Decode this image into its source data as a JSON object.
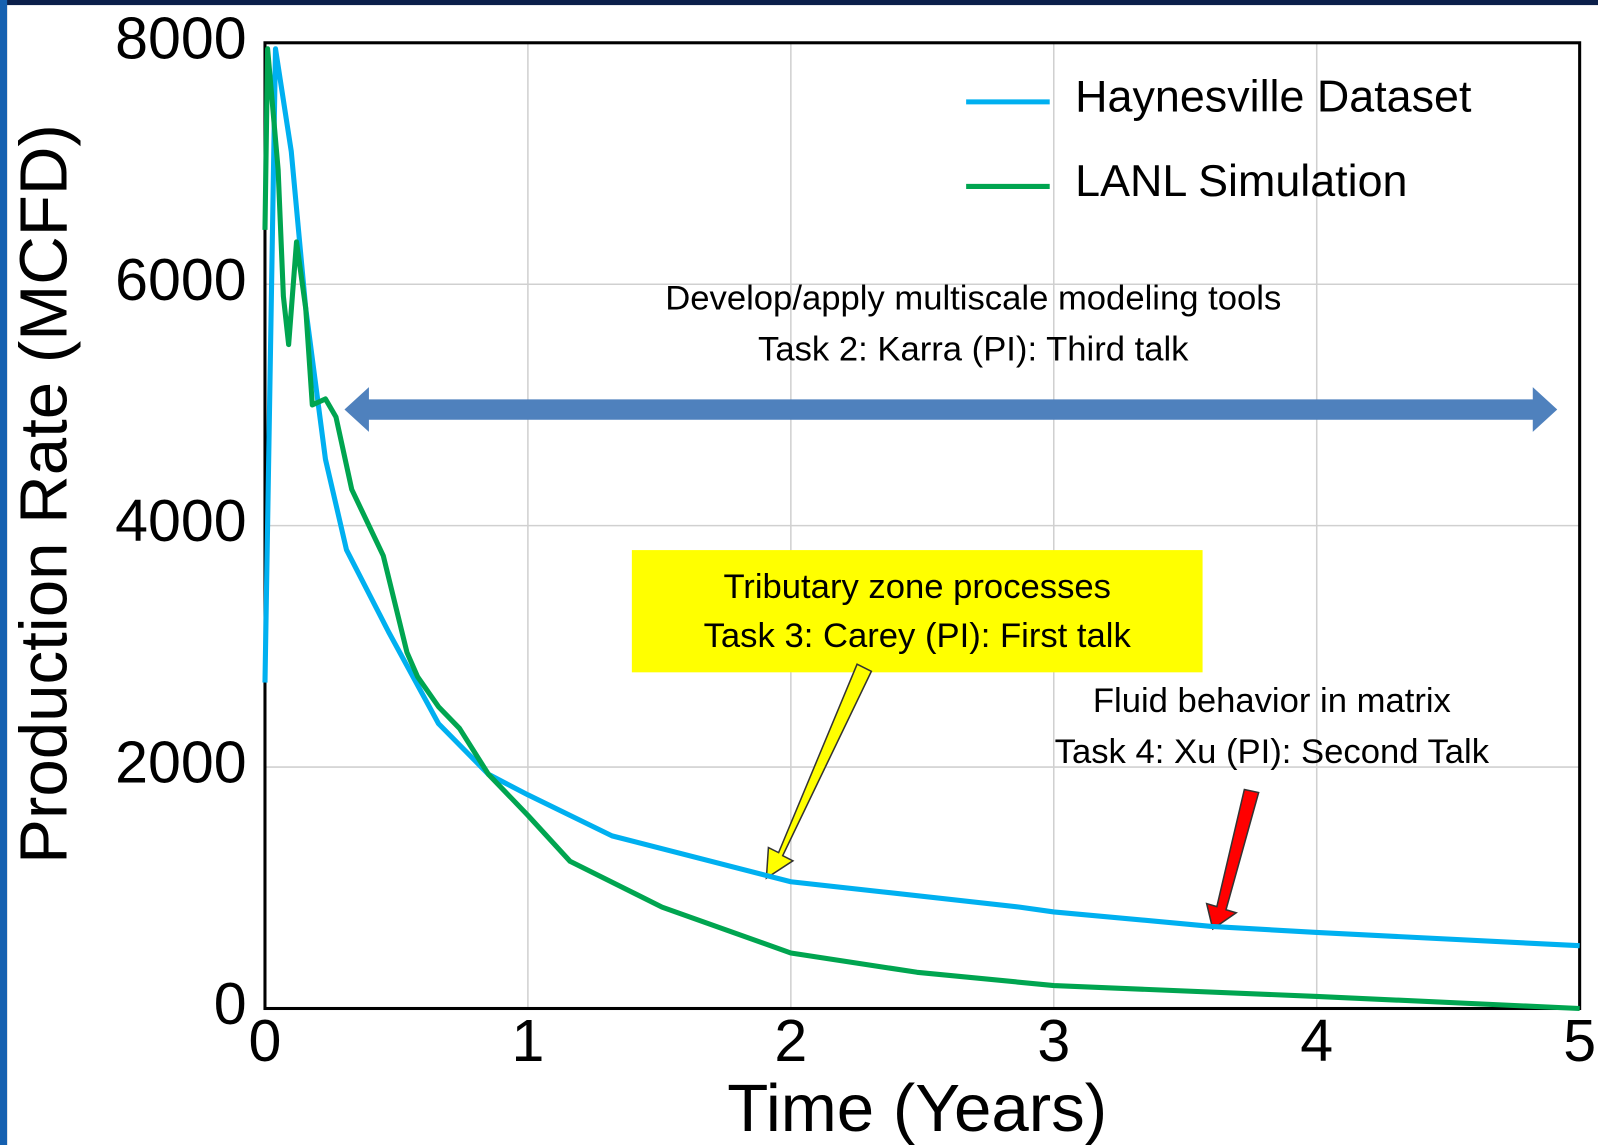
{
  "chart_data": {
    "type": "line",
    "xlabel": "Time (Years)",
    "ylabel": "Production Rate (MCFD)",
    "xlim": [
      0,
      5
    ],
    "xticks": [
      0,
      1,
      2,
      3,
      4,
      5
    ],
    "ylim": [
      0,
      8000
    ],
    "yticks": [
      0,
      2000,
      4000,
      6000,
      8000
    ],
    "grid": true,
    "legend": "upper right",
    "series": [
      {
        "name": "Haynesville Dataset",
        "color": "#00b0f0",
        "x": [
          0,
          0.04,
          0.1,
          0.155,
          0.23,
          0.31,
          0.47,
          0.66,
          0.85,
          1.0,
          1.32,
          2.0,
          2.87,
          3.0,
          3.6,
          4.0,
          5.0
        ],
        "values": [
          2700,
          7950,
          7100,
          5800,
          4550,
          3800,
          3120,
          2360,
          1940,
          1770,
          1430,
          1050,
          840,
          800,
          680,
          630,
          520
        ]
      },
      {
        "name": "LANL Simulation",
        "color": "#00a550",
        "x": [
          0,
          0.01,
          0.05,
          0.07,
          0.09,
          0.12,
          0.155,
          0.18,
          0.23,
          0.27,
          0.33,
          0.45,
          0.54,
          0.58,
          0.66,
          0.74,
          0.85,
          1.0,
          1.16,
          1.51,
          2.0,
          2.48,
          3.0,
          4.0,
          5.0
        ],
        "values": [
          6450,
          7950,
          6950,
          5900,
          5500,
          6350,
          5800,
          5000,
          5050,
          4900,
          4300,
          3750,
          2950,
          2750,
          2500,
          2320,
          1940,
          1600,
          1220,
          840,
          460,
          300,
          190,
          100,
          0
        ]
      }
    ],
    "annotations": [
      "Develop/apply multiscale modeling tools",
      "Task 2: Karra (PI): Third talk",
      "Tributary zone processes",
      "Task 3: Carey (PI): First talk",
      "Fluid behavior in matrix",
      "Task 4: Xu (PI): Second Talk"
    ]
  }
}
